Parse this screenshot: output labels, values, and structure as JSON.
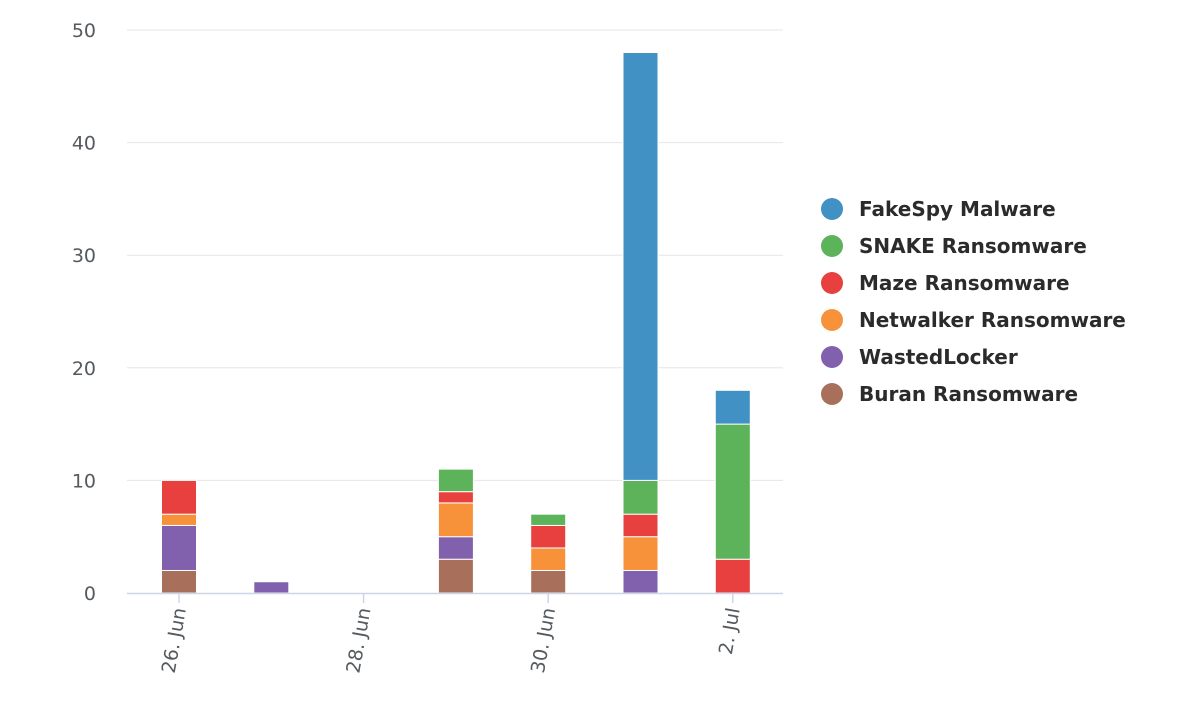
{
  "chart_data": {
    "type": "bar",
    "stacked": true,
    "x": [
      "2020-06-26",
      "2020-06-27",
      "2020-06-28",
      "2020-06-29",
      "2020-06-30",
      "2020-07-01",
      "2020-07-02"
    ],
    "x_tick_labels": [
      {
        "x": "2020-06-26",
        "label": "26. Jun"
      },
      {
        "x": "2020-06-28",
        "label": "28. Jun"
      },
      {
        "x": "2020-06-30",
        "label": "30. Jun"
      },
      {
        "x": "2020-07-02",
        "label": "2. Jul"
      }
    ],
    "series": [
      {
        "name": "Buran Ransomware",
        "color": "#a8705a",
        "values": [
          2,
          0,
          0,
          3,
          2,
          0,
          0
        ]
      },
      {
        "name": "WastedLocker",
        "color": "#8160ad",
        "values": [
          4,
          1,
          0,
          2,
          0,
          2,
          0
        ]
      },
      {
        "name": "Netwalker Ransomware",
        "color": "#f7923a",
        "values": [
          1,
          0,
          0,
          3,
          2,
          3,
          0
        ]
      },
      {
        "name": "Maze Ransomware",
        "color": "#e8403f",
        "values": [
          3,
          0,
          0,
          1,
          2,
          2,
          3
        ]
      },
      {
        "name": "SNAKE Ransomware",
        "color": "#5cb35a",
        "values": [
          0,
          0,
          0,
          2,
          1,
          3,
          12
        ]
      },
      {
        "name": "FakeSpy Malware",
        "color": "#4191c4",
        "values": [
          0,
          0,
          0,
          0,
          0,
          38,
          3
        ]
      }
    ],
    "legend_order": [
      "FakeSpy Malware",
      "SNAKE Ransomware",
      "Maze Ransomware",
      "Netwalker Ransomware",
      "WastedLocker",
      "Buran Ransomware"
    ],
    "y_ticks": [
      0,
      10,
      20,
      30,
      40,
      50
    ],
    "ylim": [
      0,
      50
    ],
    "title": "",
    "xlabel": "",
    "ylabel": "",
    "grid": true,
    "legend_position": "right"
  }
}
